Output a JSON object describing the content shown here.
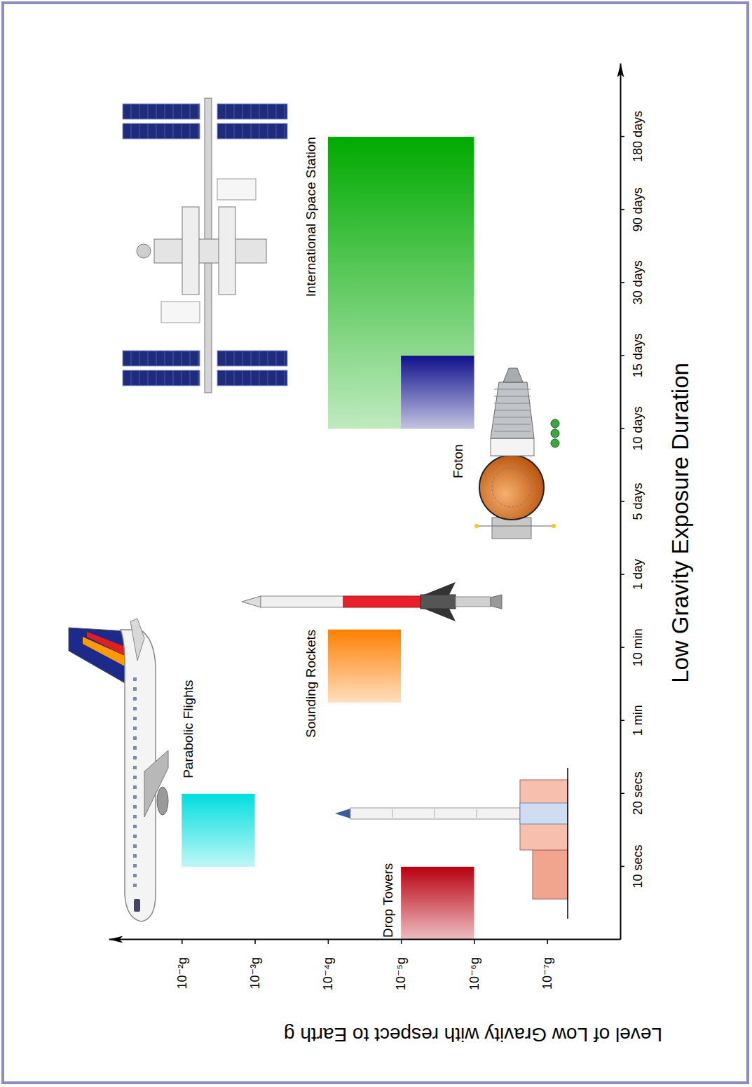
{
  "chart_data": {
    "type": "range-bar",
    "x_label": "Low Gravity Exposure Duration",
    "y_label": "Level of Low Gravity with respect to Earth g",
    "categories": [
      null,
      "10 secs",
      "20 secs",
      "1 min",
      "10 min",
      "1 day",
      "5 days",
      "10 days",
      "15 days",
      "30 days",
      "90 days",
      "180 days"
    ],
    "log": "y",
    "ylim": [
      1e-08,
      0.1
    ],
    "yticks": [
      {
        "value": 0.01,
        "label": "10⁻²g"
      },
      {
        "value": 0.001,
        "label": "10⁻³g"
      },
      {
        "value": 0.0001,
        "label": "10⁻⁴g"
      },
      {
        "value": 1e-05,
        "label": "10⁻⁵g"
      },
      {
        "value": 1e-06,
        "label": "10⁻⁶g"
      },
      {
        "value": 1e-07,
        "label": "10⁻⁷g"
      }
    ],
    "bars": [
      {
        "name": "Drop Towers",
        "color": "#b8000f",
        "x_start": 0,
        "x_end": 1,
        "low": 1e-06,
        "high": 1e-05
      },
      {
        "name": "Parabolic Flights",
        "color": "#00dede",
        "x_start": 1,
        "x_end": 2,
        "low": 0.001,
        "high": 0.01
      },
      {
        "name": "Sounding Rockets",
        "color": "#ff8000",
        "x_start": 3.25,
        "x_end": 4.25,
        "low": 1e-05,
        "high": 0.0001
      },
      {
        "name": "International Space Station",
        "color": "#00aa00",
        "x_start": 7,
        "x_end": 11,
        "low": 1e-06,
        "high": 0.0001
      },
      {
        "name": "Foton",
        "color": "#10108c",
        "x_start": 7,
        "x_end": 8,
        "low": 1e-06,
        "high": 1e-05
      }
    ]
  }
}
